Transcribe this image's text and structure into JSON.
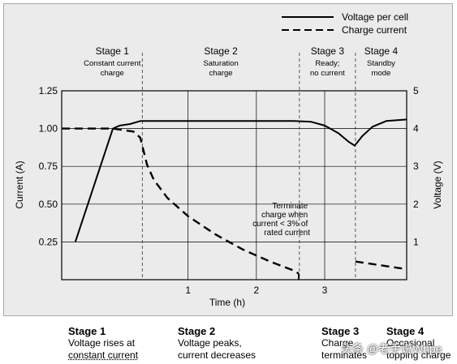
{
  "chart_data": {
    "type": "line",
    "xlabel": "Time (h)",
    "ylabel_left": "Current (A)",
    "ylabel_right": "Voltage (V)",
    "x_ticks": [
      "1",
      "2",
      "3"
    ],
    "x_tick_values": [
      1,
      2,
      3
    ],
    "xlim": [
      -0.85,
      4.2
    ],
    "y_left_ticks": [
      "0.25",
      "0.50",
      "0.75",
      "1.00",
      "1.25"
    ],
    "y_left_tick_values": [
      0.25,
      0.5,
      0.75,
      1.0,
      1.25
    ],
    "ylim_left": [
      0.0,
      1.25
    ],
    "y_right_ticks": [
      "1",
      "2",
      "3",
      "4",
      "5"
    ],
    "y_right_tick_values": [
      1,
      2,
      3,
      4,
      5
    ],
    "ylim_right": [
      0,
      5
    ],
    "grid": "vertical at x ticks, horizontal at y ticks",
    "legend_position": "top-right",
    "series": [
      {
        "name": "Voltage per cell",
        "style": "solid",
        "axis": "right",
        "x": [
          -0.65,
          -0.1,
          -0.05,
          0.0,
          0.15,
          0.3,
          0.35,
          2.55,
          2.8,
          3.0,
          3.2,
          3.35,
          3.44,
          3.55,
          3.7,
          3.9,
          4.2
        ],
        "y": [
          1.0,
          4.0,
          4.04,
          4.08,
          4.12,
          4.2,
          4.2,
          4.2,
          4.18,
          4.08,
          3.88,
          3.65,
          3.55,
          3.8,
          4.05,
          4.2,
          4.24
        ]
      },
      {
        "name": "Charge current",
        "style": "dashed",
        "axis": "left",
        "x": [
          -0.85,
          -0.1,
          0.2,
          0.3,
          0.35,
          0.4,
          0.5,
          0.7,
          1.0,
          1.4,
          1.8,
          2.2,
          2.55,
          2.62
        ],
        "y": [
          1.0,
          1.0,
          0.98,
          0.94,
          0.85,
          0.76,
          0.66,
          0.54,
          0.42,
          0.3,
          0.2,
          0.12,
          0.06,
          0.04
        ],
        "segment2": {
          "x": [
            3.45,
            4.2
          ],
          "y": [
            0.12,
            0.07
          ]
        }
      }
    ],
    "stage_boundaries_x": [
      0.33,
      2.63,
      3.45
    ],
    "stages": [
      {
        "title": "Stage 1",
        "desc": [
          "Constant current",
          "charge"
        ]
      },
      {
        "title": "Stage 2",
        "desc": [
          "Saturation",
          "charge"
        ]
      },
      {
        "title": "Stage 3",
        "desc": [
          "Ready;",
          "no current"
        ]
      },
      {
        "title": "Stage 4",
        "desc": [
          "Standby",
          "mode"
        ]
      }
    ],
    "annotation": [
      "Terminate",
      "charge when",
      "current < 3% of",
      "rated current"
    ]
  },
  "notes": [
    {
      "title": "Stage 1",
      "lines": [
        "Voltage rises at",
        "constant current"
      ]
    },
    {
      "title": "Stage 2",
      "lines": [
        "Voltage peaks,",
        "current decreases"
      ]
    },
    {
      "title": "Stage 3",
      "lines": [
        "Charge",
        "terminates"
      ]
    },
    {
      "title": "Stage 4",
      "lines": [
        "Occasional",
        "topping charge"
      ]
    }
  ],
  "watermark": "头条 @老手说Wripe"
}
